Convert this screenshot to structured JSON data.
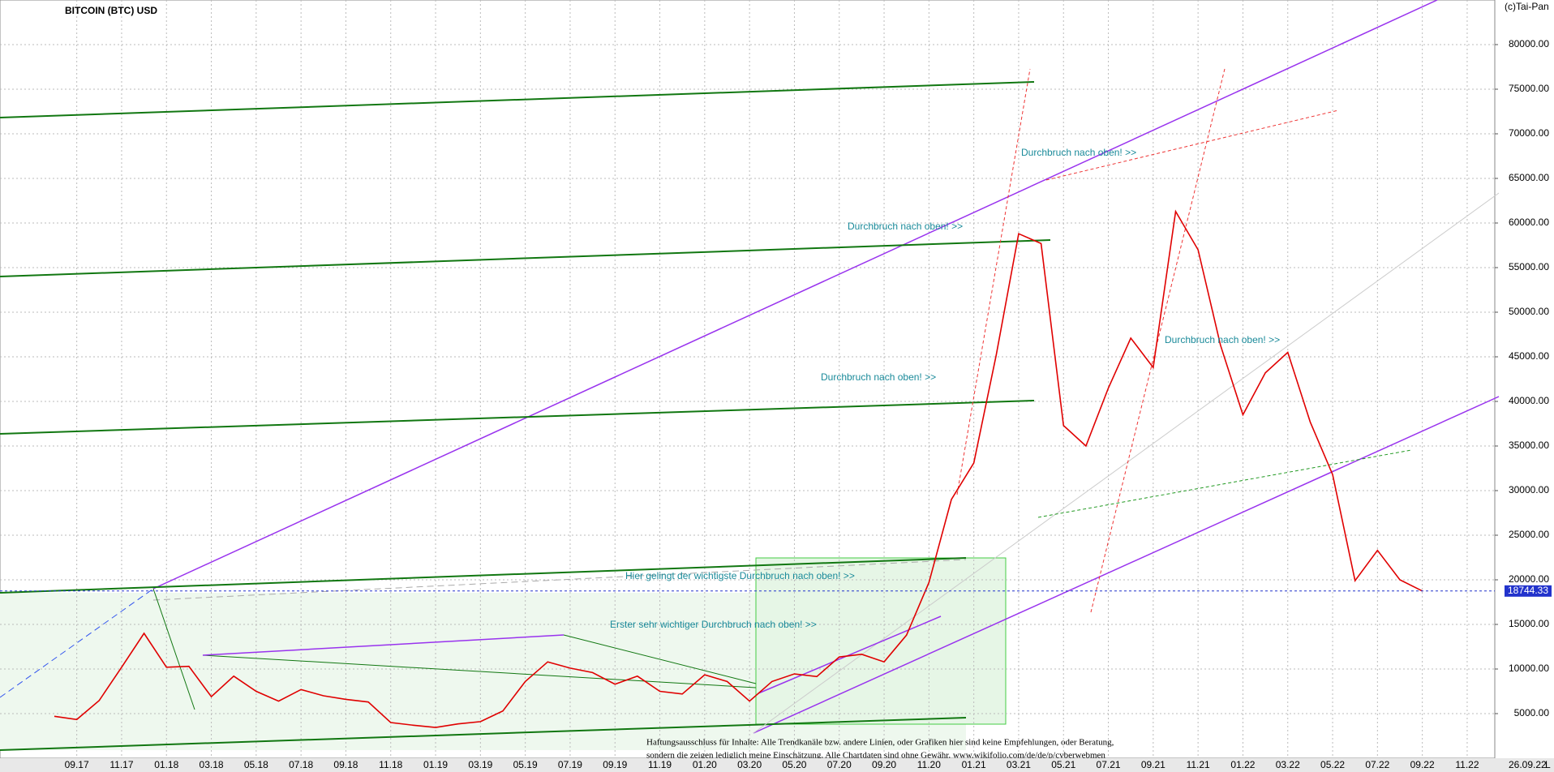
{
  "chart_data": {
    "type": "line",
    "title": "BITCOIN (BTC) USD",
    "copyright": "(c)Tai-Pan",
    "date": "26.09.22",
    "axis_marker": "L",
    "x": [
      "08.17",
      "09.17",
      "10.17",
      "11.17",
      "12.17",
      "01.18",
      "02.18",
      "03.18",
      "04.18",
      "05.18",
      "06.18",
      "07.18",
      "08.18",
      "09.18",
      "10.18",
      "11.18",
      "12.18",
      "01.19",
      "02.19",
      "03.19",
      "04.19",
      "05.19",
      "06.19",
      "07.19",
      "08.19",
      "09.19",
      "10.19",
      "11.19",
      "12.19",
      "01.20",
      "02.20",
      "03.20",
      "04.20",
      "05.20",
      "06.20",
      "07.20",
      "08.20",
      "09.20",
      "10.20",
      "11.20",
      "12.20",
      "01.21",
      "02.21",
      "03.21",
      "04.21",
      "05.21",
      "06.21",
      "07.21",
      "08.21",
      "09.21",
      "10.21",
      "11.21",
      "12.21",
      "01.22",
      "02.22",
      "03.22",
      "04.22",
      "05.22",
      "06.22",
      "07.22",
      "08.22",
      "09.22",
      "10.22",
      "11.22"
    ],
    "series": [
      {
        "name": "BTC",
        "color": "#e00000",
        "values": [
          4700,
          4340,
          6470,
          10200,
          14000,
          10200,
          10300,
          6900,
          9200,
          7500,
          6400,
          7700,
          7000,
          6600,
          6300,
          4000,
          3700,
          3450,
          3850,
          4100,
          5300,
          8600,
          10800,
          10100,
          9600,
          8300,
          9200,
          7500,
          7200,
          9350,
          8600,
          6400,
          8600,
          9450,
          9150,
          11350,
          11650,
          10800,
          13800,
          19700,
          29000,
          33100,
          45200,
          58800,
          57700,
          37300,
          35000,
          41500,
          47100,
          43800,
          61300,
          57000,
          46300,
          38500,
          43200,
          45500,
          37700,
          31800,
          19900,
          23300,
          20000,
          18744.33,
          null,
          null
        ]
      }
    ],
    "xticks": [
      "09.17",
      "11.17",
      "01.18",
      "03.18",
      "05.18",
      "07.18",
      "09.18",
      "11.18",
      "01.19",
      "03.19",
      "05.19",
      "07.19",
      "09.19",
      "11.19",
      "01.20",
      "03.20",
      "05.20",
      "07.20",
      "09.20",
      "11.20",
      "01.21",
      "03.21",
      "05.21",
      "07.21",
      "09.21",
      "11.21",
      "01.22",
      "03.22",
      "05.22",
      "07.22",
      "09.22",
      "11.22"
    ],
    "ylim": [
      0,
      85000
    ],
    "yticks": [
      {
        "value": 5000,
        "label": "5000.00"
      },
      {
        "value": 10000,
        "label": "10000.00"
      },
      {
        "value": 15000,
        "label": "15000.00"
      },
      {
        "value": 20000,
        "label": "20000.00"
      },
      {
        "value": 25000,
        "label": "25000.00"
      },
      {
        "value": 30000,
        "label": "30000.00"
      },
      {
        "value": 35000,
        "label": "35000.00"
      },
      {
        "value": 40000,
        "label": "40000.00"
      },
      {
        "value": 45000,
        "label": "45000.00"
      },
      {
        "value": 50000,
        "label": "50000.00"
      },
      {
        "value": 55000,
        "label": "55000.00"
      },
      {
        "value": 60000,
        "label": "60000.00"
      },
      {
        "value": 65000,
        "label": "65000.00"
      },
      {
        "value": 70000,
        "label": "70000.00"
      },
      {
        "value": 75000,
        "label": "75000.00"
      },
      {
        "value": 80000,
        "label": "80000.00"
      }
    ],
    "grid": true,
    "annotations": [
      "Durchbruch nach oben! >>",
      "Durchbruch nach oben! >>",
      "Durchbruch nach oben! >>",
      "Durchbruch nach oben! >>",
      "Hier gelingt der wichtigste Durchbruch nach oben! >>",
      "Erster sehr wichtiger Durchbruch nach oben! >>"
    ],
    "disclaimer": [
      "Haftungsausschluss für Inhalte: Alle Trendkanäle bzw. andere Linien, oder Grafiken hier sind keine Empfehlungen, oder Beratung,",
      "sondern die zeigen lediglich meine Einschätzung. Alle Chartdaten sind ohne Gewähr. www.wikifolio.com/de/de/p/cyberwebmen"
    ]
  }
}
